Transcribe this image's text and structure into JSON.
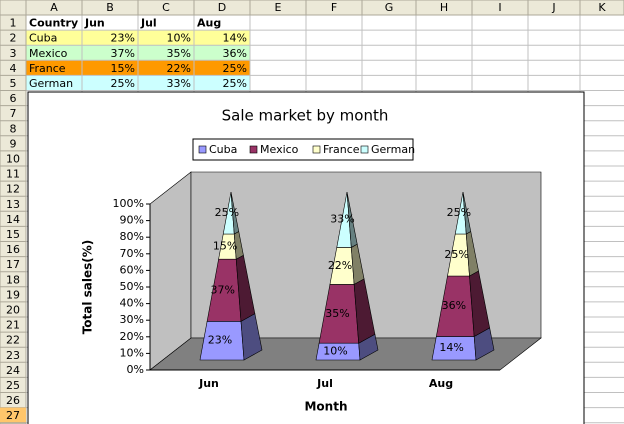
{
  "sheet": {
    "columns": [
      "A",
      "B",
      "C",
      "D",
      "E",
      "F",
      "G",
      "H",
      "I",
      "J",
      "K"
    ],
    "row_numbers": [
      "1",
      "2",
      "3",
      "4",
      "5",
      "6",
      "7",
      "8",
      "9",
      "10",
      "11",
      "12",
      "13",
      "14",
      "15",
      "16",
      "17",
      "18",
      "19",
      "20",
      "21",
      "22",
      "23",
      "24",
      "25",
      "26",
      "27"
    ],
    "rows": [
      [
        "Country",
        "Jun",
        "Jul",
        "Aug"
      ],
      [
        "Cuba",
        "23%",
        "10%",
        "14%"
      ],
      [
        "Mexico",
        "37%",
        "35%",
        "36%"
      ],
      [
        "France",
        "15%",
        "22%",
        "25%"
      ],
      [
        "German",
        "25%",
        "33%",
        "25%"
      ]
    ]
  },
  "chart_data": {
    "type": "pyramid3d",
    "stacked": true,
    "title": "Sale market by month",
    "x_label": "Month",
    "y_label": "Total sales(%)",
    "categories": [
      "Jun",
      "Jul",
      "Aug"
    ],
    "series": [
      {
        "name": "Cuba",
        "color": "#9999ff",
        "values": [
          23,
          10,
          14
        ],
        "value_labels": [
          "23%",
          "10%",
          "14%"
        ]
      },
      {
        "name": "Mexico",
        "color": "#993366",
        "values": [
          37,
          35,
          36
        ],
        "value_labels": [
          "37%",
          "35%",
          "36%"
        ]
      },
      {
        "name": "France",
        "color": "#ffffcc",
        "values": [
          15,
          22,
          25
        ],
        "value_labels": [
          "15%",
          "22%",
          "25%"
        ]
      },
      {
        "name": "German",
        "color": "#ccffff",
        "values": [
          25,
          33,
          25
        ],
        "value_labels": [
          "25%",
          "33%",
          "25%"
        ]
      }
    ],
    "ylim": [
      0,
      100
    ],
    "yticks": [
      {
        "value": 0,
        "label": "0%"
      },
      {
        "value": 10,
        "label": "10%"
      },
      {
        "value": 20,
        "label": "20%"
      },
      {
        "value": 30,
        "label": "30%"
      },
      {
        "value": 40,
        "label": "40%"
      },
      {
        "value": 50,
        "label": "50%"
      },
      {
        "value": 60,
        "label": "60%"
      },
      {
        "value": 70,
        "label": "70%"
      },
      {
        "value": 80,
        "label": "80%"
      },
      {
        "value": 90,
        "label": "90%"
      },
      {
        "value": 100,
        "label": "100%"
      }
    ],
    "legend": "top"
  }
}
